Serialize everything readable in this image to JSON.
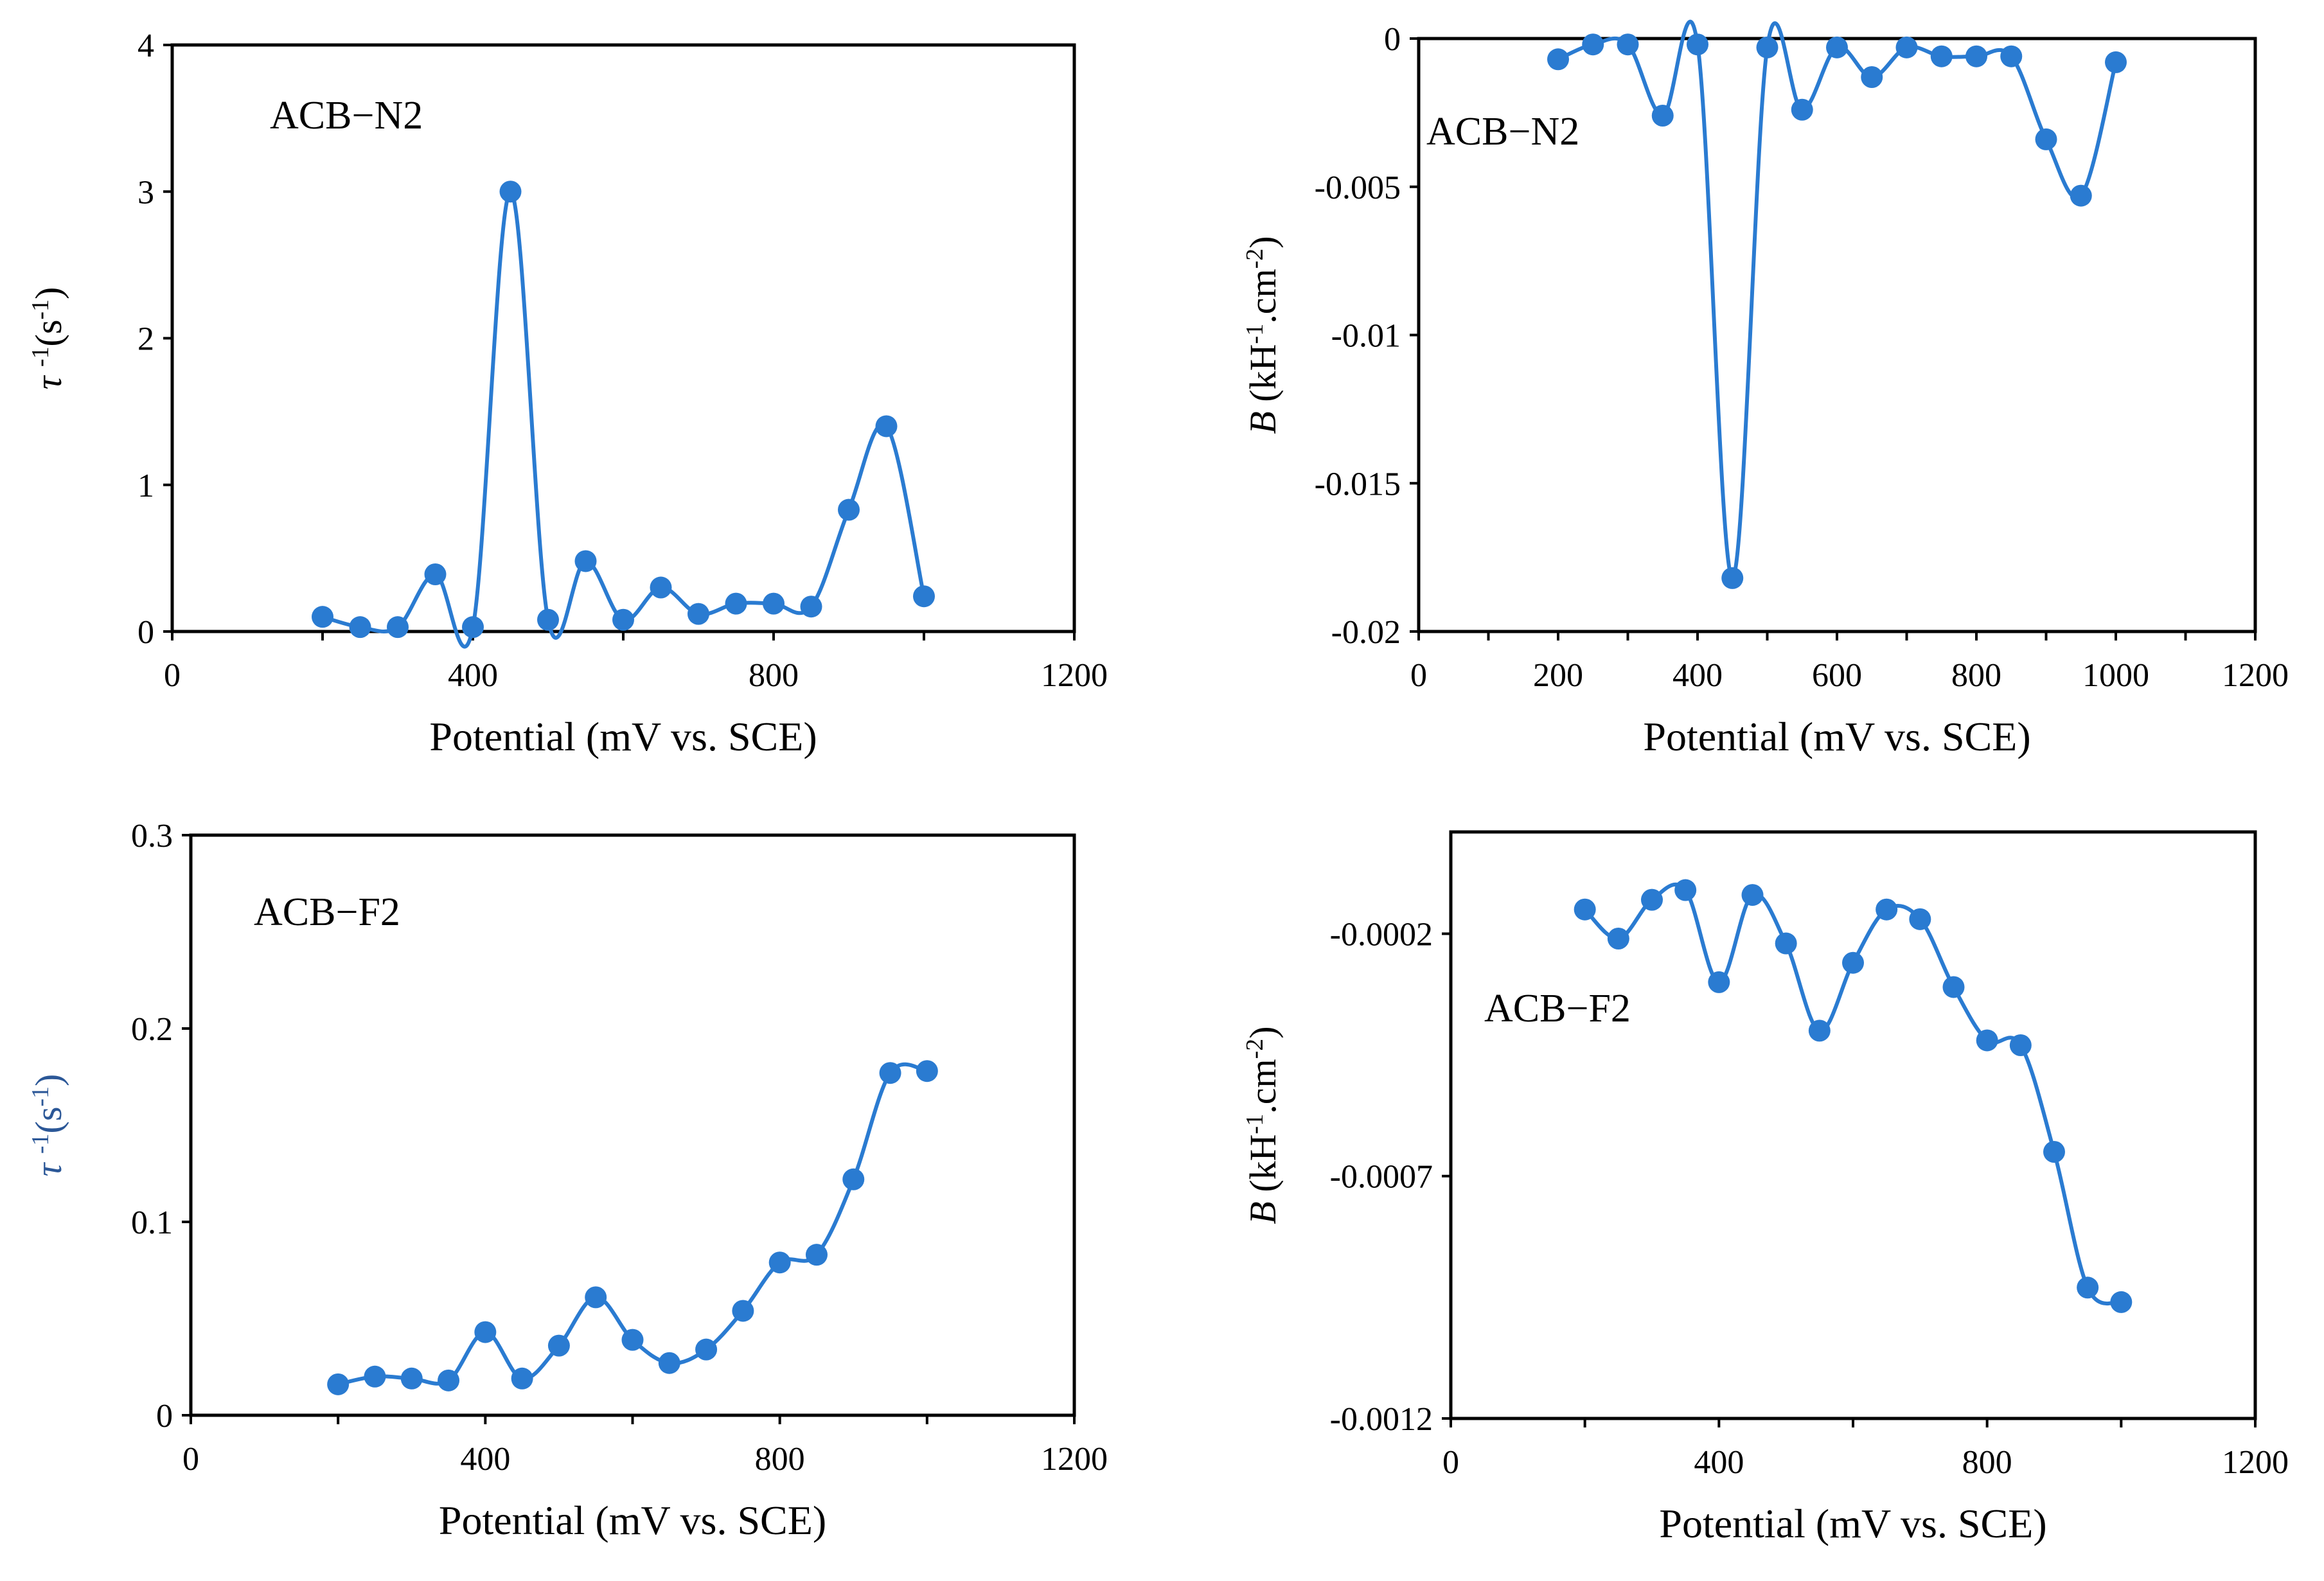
{
  "chart_data": [
    {
      "id": "top-left",
      "type": "line",
      "label": "ACB−N2",
      "xlabel": "Potential (mV vs. SCE)",
      "ylabel_tau": "τ",
      "ylabel_sup": "-1",
      "ylabel_rest": "(s",
      "ylabel_sup2": "-1",
      "ylabel_close": ")",
      "xlim": [
        0,
        1200
      ],
      "ylim": [
        0,
        4
      ],
      "xticks": [
        0,
        400,
        800,
        1200
      ],
      "yticks": [
        0,
        1,
        2,
        3,
        4
      ],
      "ytick_labels": [
        "0",
        "1",
        "2",
        "3",
        "4"
      ],
      "minor_x": [
        200,
        600,
        1000
      ],
      "series": [
        {
          "name": "ACB−N2",
          "x": [
            200,
            250,
            300,
            350,
            400,
            450,
            500,
            550,
            600,
            650,
            700,
            750,
            800,
            850,
            900,
            950,
            1000
          ],
          "y": [
            0.1,
            0.03,
            0.03,
            0.39,
            0.03,
            3.0,
            0.08,
            0.48,
            0.08,
            0.3,
            0.12,
            0.19,
            0.19,
            0.17,
            0.83,
            1.4,
            0.24
          ]
        }
      ]
    },
    {
      "id": "top-right",
      "type": "line",
      "label": "ACB−N2",
      "xlabel": "Potential (mV vs. SCE)",
      "ylabel_b": "B",
      "ylabel_rest": " (kH",
      "ylabel_sup": "-1",
      "ylabel_mid": ".cm",
      "ylabel_sup2": "-2",
      "ylabel_close": ")",
      "xlim": [
        0,
        1200
      ],
      "ylim": [
        -0.02,
        0
      ],
      "xticks": [
        0,
        200,
        400,
        600,
        800,
        1000,
        1200
      ],
      "yticks": [
        -0.02,
        -0.015,
        -0.01,
        -0.005,
        0
      ],
      "ytick_labels": [
        "-0.02",
        "-0.015",
        "-0.01",
        "-0.005",
        "0"
      ],
      "minor_x": [
        100,
        300,
        500,
        700,
        900,
        1100
      ],
      "series": [
        {
          "name": "ACB−N2",
          "x": [
            200,
            250,
            300,
            350,
            400,
            450,
            500,
            550,
            600,
            650,
            700,
            750,
            800,
            850,
            900,
            950,
            1000
          ],
          "y": [
            -0.0007,
            -0.0002,
            -0.0002,
            -0.0026,
            -0.0002,
            -0.0182,
            -0.0003,
            -0.0024,
            -0.0003,
            -0.0013,
            -0.0003,
            -0.0006,
            -0.0006,
            -0.0006,
            -0.0034,
            -0.0053,
            -0.0008
          ]
        }
      ]
    },
    {
      "id": "bottom-left",
      "type": "line",
      "label": "ACB−F2",
      "xlabel": "Potential (mV vs. SCE)",
      "ylabel_tau": "τ",
      "ylabel_sup": "-1",
      "ylabel_rest": "(s",
      "ylabel_sup2": "-1",
      "ylabel_close": ")",
      "xlim": [
        0,
        1200
      ],
      "ylim": [
        0,
        0.3
      ],
      "xticks": [
        0,
        400,
        800,
        1200
      ],
      "yticks": [
        0,
        0.1,
        0.2,
        0.3
      ],
      "ytick_labels": [
        "0",
        "0.1",
        "0.2",
        "0.3"
      ],
      "minor_x": [
        200,
        600,
        1000
      ],
      "series": [
        {
          "name": "ACB−F2",
          "x": [
            200,
            250,
            300,
            350,
            400,
            450,
            500,
            550,
            600,
            650,
            700,
            750,
            800,
            850,
            900,
            950,
            1000
          ],
          "y": [
            0.016,
            0.02,
            0.019,
            0.018,
            0.043,
            0.019,
            0.036,
            0.061,
            0.039,
            0.027,
            0.034,
            0.054,
            0.079,
            0.083,
            0.122,
            0.177,
            0.178
          ]
        }
      ]
    },
    {
      "id": "bottom-right",
      "type": "line",
      "label": "ACB−F2",
      "xlabel": "Potential (mV vs. SCE)",
      "ylabel_b": "B",
      "ylabel_rest": " (kH",
      "ylabel_sup": "-1",
      "ylabel_mid": ".cm",
      "ylabel_sup2": "-2",
      "ylabel_close": ")",
      "xlim": [
        0,
        1200
      ],
      "ylim": [
        -0.0012,
        1e-05
      ],
      "xticks": [
        0,
        400,
        800,
        1200
      ],
      "yticks": [
        -0.0012,
        -0.0007,
        -0.0002
      ],
      "ytick_labels": [
        "-0.0012",
        "-0.0007",
        "-0.0002"
      ],
      "minor_x": [
        200,
        600,
        1000
      ],
      "series": [
        {
          "name": "ACB−F2",
          "x": [
            200,
            250,
            300,
            350,
            400,
            450,
            500,
            550,
            600,
            650,
            700,
            750,
            800,
            850,
            900,
            950,
            1000
          ],
          "y": [
            -0.00015,
            -0.00021,
            -0.00013,
            -0.00011,
            -0.0003,
            -0.00012,
            -0.00022,
            -0.0004,
            -0.00026,
            -0.00015,
            -0.00017,
            -0.00031,
            -0.00042,
            -0.00043,
            -0.00065,
            -0.00093,
            -0.00096
          ]
        }
      ]
    }
  ],
  "colors": {
    "series": "#2a7bd1",
    "frame": "#000000",
    "ylabel_blue": "#2b5797"
  }
}
